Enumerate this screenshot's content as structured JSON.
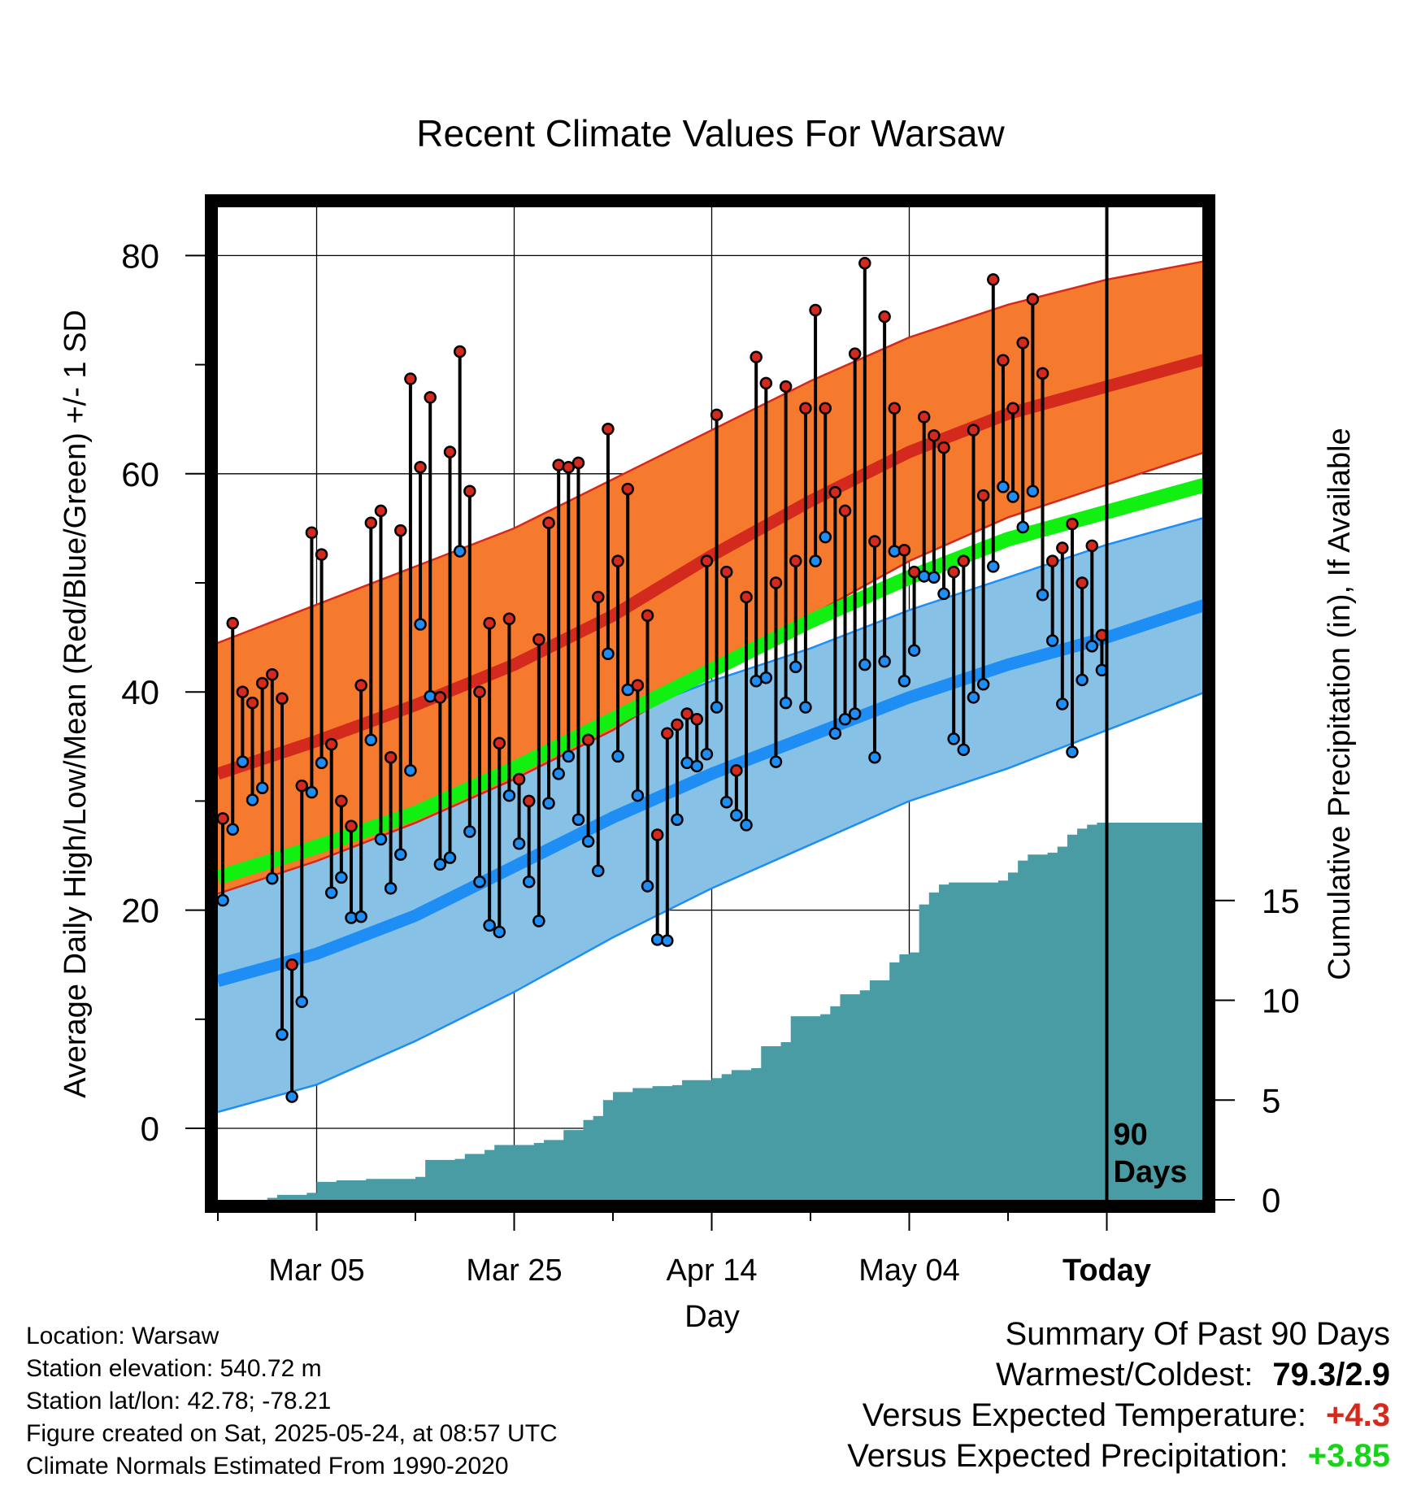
{
  "chart_data": {
    "type": "line",
    "title": "Recent Climate Values For Warsaw",
    "xlabel": "Day",
    "ylabel": "Average Daily High/Low/Mean (Red/Blue/Green) +/- 1 SD",
    "y2label": "Cumulative Precipitation (in), If Available",
    "ylim": [
      -6.5,
      85
    ],
    "y2lim": [
      0,
      21
    ],
    "xlim": [
      0,
      100
    ],
    "x_ticks": [
      {
        "day": 10,
        "label": "Mar 05"
      },
      {
        "day": 30,
        "label": "Mar 25"
      },
      {
        "day": 50,
        "label": "Apr 14"
      },
      {
        "day": 70,
        "label": "May 04"
      },
      {
        "day": 90,
        "label": "Today"
      }
    ],
    "y_ticks": [
      0,
      20,
      40,
      60,
      80
    ],
    "y2_ticks": [
      0,
      5,
      10,
      15
    ],
    "today_day": 90,
    "today_label": "90\nDays",
    "grid": true,
    "normals": {
      "day": [
        0,
        10,
        20,
        30,
        40,
        50,
        60,
        70,
        80,
        90,
        100
      ],
      "high_mean": [
        32.5,
        35.5,
        38.8,
        42.5,
        47,
        52.5,
        57.5,
        62,
        65.5,
        68,
        70.5
      ],
      "high_upper": [
        44.5,
        48,
        51.5,
        55,
        59.5,
        64,
        68.5,
        72.5,
        75.5,
        77.8,
        79.5
      ],
      "high_lower": [
        21.5,
        24.5,
        28,
        32,
        36.5,
        42,
        47,
        52,
        56,
        59,
        62
      ],
      "low_mean": [
        13.5,
        16,
        19.5,
        24,
        28.5,
        32.5,
        36,
        39.5,
        42.5,
        45,
        48
      ],
      "low_upper": [
        26.5,
        28.5,
        31,
        34,
        37.5,
        41,
        44,
        47.5,
        50.5,
        53.5,
        56
      ],
      "low_lower": [
        1.5,
        4,
        8,
        12.5,
        17.5,
        22,
        26,
        30,
        33,
        36.5,
        40
      ],
      "mean_mean": [
        23,
        25.8,
        28.9,
        33,
        37.5,
        42,
        46.5,
        50.5,
        54,
        56.5,
        59
      ]
    },
    "series": [
      {
        "name": "High",
        "values": [
          28.4,
          46.3,
          40,
          39,
          40.8,
          41.6,
          39.4,
          15,
          31.4,
          54.6,
          52.6,
          35.2,
          30,
          27.7,
          40.6,
          55.5,
          56.6,
          34,
          54.8,
          68.7,
          60.6,
          67,
          39.5,
          62,
          71.2,
          58.4,
          40,
          46.3,
          35.3,
          46.7,
          32,
          30,
          44.8,
          55.5,
          60.8,
          60.6,
          61,
          35.6,
          48.7,
          64.1,
          52,
          58.6,
          40.6,
          47,
          26.9,
          36.2,
          37,
          38,
          37.5,
          52,
          65.4,
          51,
          32.8,
          48.7,
          70.7,
          68.3,
          50,
          68,
          52,
          66,
          75,
          66,
          58.3,
          56.6,
          71,
          79.3,
          53.8,
          74.4,
          66,
          53,
          51,
          65.2,
          63.5,
          62.4,
          51,
          52,
          64,
          58,
          77.8,
          70.4,
          66,
          72,
          76,
          69.2,
          52,
          53.2,
          55.4,
          50,
          53.4,
          45.2
        ]
      },
      {
        "name": "Low",
        "values": [
          20.9,
          27.4,
          33.6,
          30.1,
          31.2,
          22.9,
          8.6,
          2.9,
          11.6,
          30.8,
          33.5,
          21.6,
          23,
          19.3,
          19.4,
          35.6,
          26.5,
          22,
          25.1,
          32.8,
          46.2,
          39.6,
          24.2,
          24.8,
          52.9,
          27.2,
          22.6,
          18.6,
          18,
          30.5,
          26.1,
          22.6,
          19,
          29.8,
          32.5,
          34.1,
          28.3,
          26.3,
          23.6,
          43.5,
          34.1,
          40.2,
          30.5,
          22.2,
          17.3,
          17.2,
          28.3,
          33.5,
          33.2,
          34.3,
          38.6,
          29.9,
          28.7,
          27.8,
          41,
          41.3,
          33.6,
          39,
          42.3,
          38.6,
          52,
          54.2,
          36.2,
          37.5,
          38,
          42.5,
          34,
          42.8,
          52.9,
          41,
          43.8,
          50.6,
          50.5,
          49,
          35.7,
          34.7,
          39.5,
          40.7,
          51.5,
          58.8,
          57.9,
          55.1,
          58.4,
          48.9,
          44.7,
          38.9,
          34.5,
          41.1,
          44.2,
          42
        ]
      }
    ],
    "precip_cumulative": [
      [
        0,
        0.0
      ],
      [
        5,
        0.1
      ],
      [
        6,
        0.25
      ],
      [
        9,
        0.35
      ],
      [
        10,
        0.9
      ],
      [
        12,
        0.98
      ],
      [
        15,
        1.05
      ],
      [
        20,
        1.15
      ],
      [
        21,
        2.0
      ],
      [
        24,
        2.05
      ],
      [
        25,
        2.3
      ],
      [
        27,
        2.5
      ],
      [
        28,
        2.75
      ],
      [
        32,
        2.85
      ],
      [
        33,
        3.0
      ],
      [
        35,
        3.5
      ],
      [
        37,
        4.0
      ],
      [
        38,
        4.2
      ],
      [
        39,
        5.0
      ],
      [
        40,
        5.4
      ],
      [
        42,
        5.6
      ],
      [
        44,
        5.7
      ],
      [
        46,
        5.75
      ],
      [
        47,
        6.0
      ],
      [
        50,
        6.1
      ],
      [
        51,
        6.3
      ],
      [
        52,
        6.5
      ],
      [
        54,
        6.6
      ],
      [
        55,
        7.7
      ],
      [
        57,
        7.9
      ],
      [
        58,
        9.2
      ],
      [
        61,
        9.3
      ],
      [
        62,
        9.7
      ],
      [
        63,
        10.3
      ],
      [
        65,
        10.5
      ],
      [
        66,
        11.0
      ],
      [
        68,
        11.9
      ],
      [
        69,
        12.3
      ],
      [
        70,
        12.4
      ],
      [
        71,
        14.8
      ],
      [
        72,
        15.4
      ],
      [
        73,
        15.8
      ],
      [
        74,
        15.9
      ],
      [
        79,
        16.0
      ],
      [
        80,
        16.4
      ],
      [
        81,
        17.0
      ],
      [
        82,
        17.3
      ],
      [
        84,
        17.4
      ],
      [
        85,
        17.7
      ],
      [
        86,
        18.3
      ],
      [
        87,
        18.6
      ],
      [
        88,
        18.8
      ],
      [
        89,
        18.9
      ],
      [
        90,
        18.9
      ],
      [
        100,
        18.9
      ]
    ]
  },
  "footer": {
    "location": "Location: Warsaw",
    "elevation": "Station elevation: 540.72 m",
    "latlon": "Station lat/lon: 42.78; -78.21",
    "created": "Figure created on Sat, 2025-05-24, at 08:57 UTC",
    "normals": "Climate Normals Estimated From 1990-2020"
  },
  "summary": {
    "heading": "Summary Of Past 90 Days",
    "warm_cold_label": "Warmest/Coldest:",
    "warm_cold_value": "79.3/2.9",
    "temp_label": "Versus Expected Temperature:",
    "temp_value": "+4.3",
    "precip_label": "Versus Expected Precipitation:",
    "precip_value": "+3.85"
  },
  "colors": {
    "high_band": "#f57a2d",
    "high_band_edge": "#d42a1e",
    "high_mean": "#d42a1e",
    "low_band": "#87c2e6",
    "low_band_edge": "#1e8ef5",
    "low_mean": "#1e8ef5",
    "mean_line": "#12f012",
    "precip_fill": "#4a9ca4",
    "high_marker": "#d42a1e",
    "low_marker": "#1e8ef5",
    "warm_value": "#d42a1e",
    "precip_value": "#18d418"
  }
}
